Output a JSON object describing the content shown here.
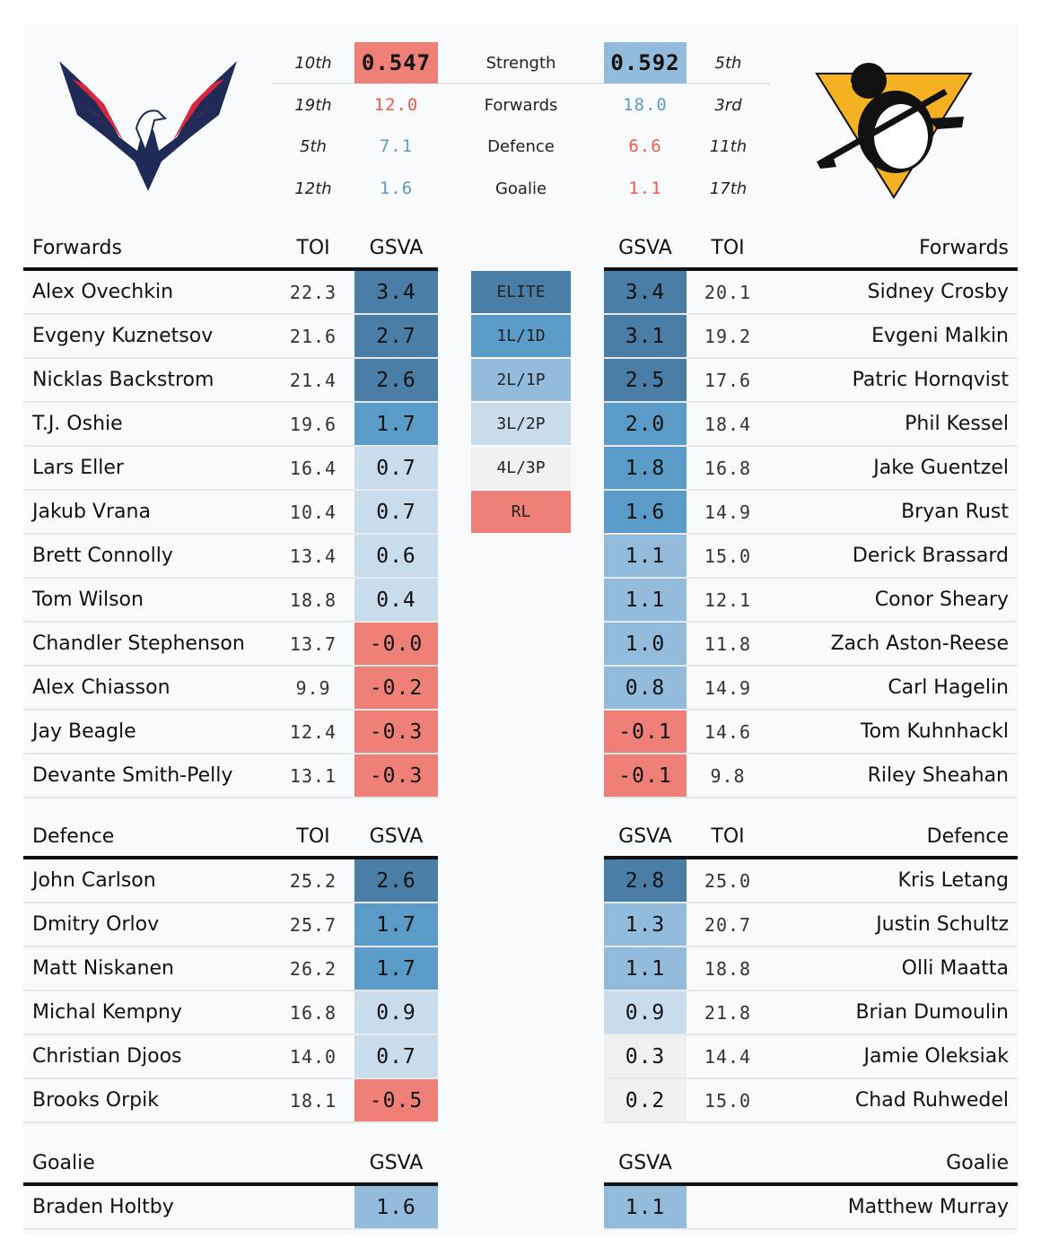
{
  "colors": {
    "elite": "#4a7ea6",
    "l1": "#5b9bc8",
    "l2": "#93bcdc",
    "l3": "#c8dcec",
    "l4": "#eef0f1",
    "rl": "#ef8078",
    "red_text": "#ec5a4f",
    "blue_text": "#5b9bc8"
  },
  "teams": {
    "left_logo": "capitals-logo",
    "right_logo": "penguins-logo"
  },
  "summary": {
    "strength_label": "Strength",
    "rows": [
      {
        "label": "Strength",
        "left_rank": "10th",
        "left_value": "0.547",
        "right_value": "0.592",
        "right_rank": "5th"
      },
      {
        "label": "Forwards",
        "left_rank": "19th",
        "left_value": "12.0",
        "right_value": "18.0",
        "right_rank": "3rd"
      },
      {
        "label": "Defence",
        "left_rank": "5th",
        "left_value": "7.1",
        "right_value": "6.6",
        "right_rank": "11th"
      },
      {
        "label": "Goalie",
        "left_rank": "12th",
        "left_value": "1.6",
        "right_value": "1.1",
        "right_rank": "17th"
      }
    ]
  },
  "headers": {
    "forwards": "Forwards",
    "defence": "Defence",
    "goalie": "Goalie",
    "toi": "TOI",
    "gsva": "GSVA"
  },
  "legend": [
    "ELITE",
    "1L/1D",
    "2L/1P",
    "3L/2P",
    "4L/3P",
    "RL"
  ],
  "left": {
    "forwards": [
      {
        "name": "Alex Ovechkin",
        "toi": "22.3",
        "gsva": "3.4",
        "tier": "elite"
      },
      {
        "name": "Evgeny Kuznetsov",
        "toi": "21.6",
        "gsva": "2.7",
        "tier": "elite"
      },
      {
        "name": "Nicklas Backstrom",
        "toi": "21.4",
        "gsva": "2.6",
        "tier": "elite"
      },
      {
        "name": "T.J. Oshie",
        "toi": "19.6",
        "gsva": "1.7",
        "tier": "l1"
      },
      {
        "name": "Lars Eller",
        "toi": "16.4",
        "gsva": "0.7",
        "tier": "l3"
      },
      {
        "name": "Jakub Vrana",
        "toi": "10.4",
        "gsva": "0.7",
        "tier": "l3"
      },
      {
        "name": "Brett Connolly",
        "toi": "13.4",
        "gsva": "0.6",
        "tier": "l3"
      },
      {
        "name": "Tom Wilson",
        "toi": "18.8",
        "gsva": "0.4",
        "tier": "l3"
      },
      {
        "name": "Chandler Stephenson",
        "toi": "13.7",
        "gsva": "-0.0",
        "tier": "rl"
      },
      {
        "name": "Alex Chiasson",
        "toi": "9.9",
        "gsva": "-0.2",
        "tier": "rl"
      },
      {
        "name": "Jay Beagle",
        "toi": "12.4",
        "gsva": "-0.3",
        "tier": "rl"
      },
      {
        "name": "Devante Smith-Pelly",
        "toi": "13.1",
        "gsva": "-0.3",
        "tier": "rl"
      }
    ],
    "defence": [
      {
        "name": "John Carlson",
        "toi": "25.2",
        "gsva": "2.6",
        "tier": "elite"
      },
      {
        "name": "Dmitry Orlov",
        "toi": "25.7",
        "gsva": "1.7",
        "tier": "l1"
      },
      {
        "name": "Matt Niskanen",
        "toi": "26.2",
        "gsva": "1.7",
        "tier": "l1"
      },
      {
        "name": "Michal Kempny",
        "toi": "16.8",
        "gsva": "0.9",
        "tier": "l3"
      },
      {
        "name": "Christian Djoos",
        "toi": "14.0",
        "gsva": "0.7",
        "tier": "l3"
      },
      {
        "name": "Brooks Orpik",
        "toi": "18.1",
        "gsva": "-0.5",
        "tier": "rl"
      }
    ],
    "goalie": [
      {
        "name": "Braden Holtby",
        "gsva": "1.6",
        "tier": "l2"
      }
    ]
  },
  "right": {
    "forwards": [
      {
        "name": "Sidney Crosby",
        "toi": "20.1",
        "gsva": "3.4",
        "tier": "elite"
      },
      {
        "name": "Evgeni Malkin",
        "toi": "19.2",
        "gsva": "3.1",
        "tier": "elite"
      },
      {
        "name": "Patric Hornqvist",
        "toi": "17.6",
        "gsva": "2.5",
        "tier": "elite"
      },
      {
        "name": "Phil Kessel",
        "toi": "18.4",
        "gsva": "2.0",
        "tier": "l1"
      },
      {
        "name": "Jake Guentzel",
        "toi": "16.8",
        "gsva": "1.8",
        "tier": "l1"
      },
      {
        "name": "Bryan Rust",
        "toi": "14.9",
        "gsva": "1.6",
        "tier": "l1"
      },
      {
        "name": "Derick Brassard",
        "toi": "15.0",
        "gsva": "1.1",
        "tier": "l2"
      },
      {
        "name": "Conor Sheary",
        "toi": "12.1",
        "gsva": "1.1",
        "tier": "l2"
      },
      {
        "name": "Zach Aston-Reese",
        "toi": "11.8",
        "gsva": "1.0",
        "tier": "l2"
      },
      {
        "name": "Carl Hagelin",
        "toi": "14.9",
        "gsva": "0.8",
        "tier": "l2"
      },
      {
        "name": "Tom Kuhnhackl",
        "toi": "14.6",
        "gsva": "-0.1",
        "tier": "rl"
      },
      {
        "name": "Riley Sheahan",
        "toi": "9.8",
        "gsva": "-0.1",
        "tier": "rl"
      }
    ],
    "defence": [
      {
        "name": "Kris Letang",
        "toi": "25.0",
        "gsva": "2.8",
        "tier": "elite"
      },
      {
        "name": "Justin Schultz",
        "toi": "20.7",
        "gsva": "1.3",
        "tier": "l2"
      },
      {
        "name": "Olli Maatta",
        "toi": "18.8",
        "gsva": "1.1",
        "tier": "l2"
      },
      {
        "name": "Brian Dumoulin",
        "toi": "21.8",
        "gsva": "0.9",
        "tier": "l3"
      },
      {
        "name": "Jamie Oleksiak",
        "toi": "14.4",
        "gsva": "0.3",
        "tier": "l4"
      },
      {
        "name": "Chad Ruhwedel",
        "toi": "15.0",
        "gsva": "0.2",
        "tier": "l4"
      }
    ],
    "goalie": [
      {
        "name": "Matthew Murray",
        "gsva": "1.1",
        "tier": "l2"
      }
    ]
  }
}
